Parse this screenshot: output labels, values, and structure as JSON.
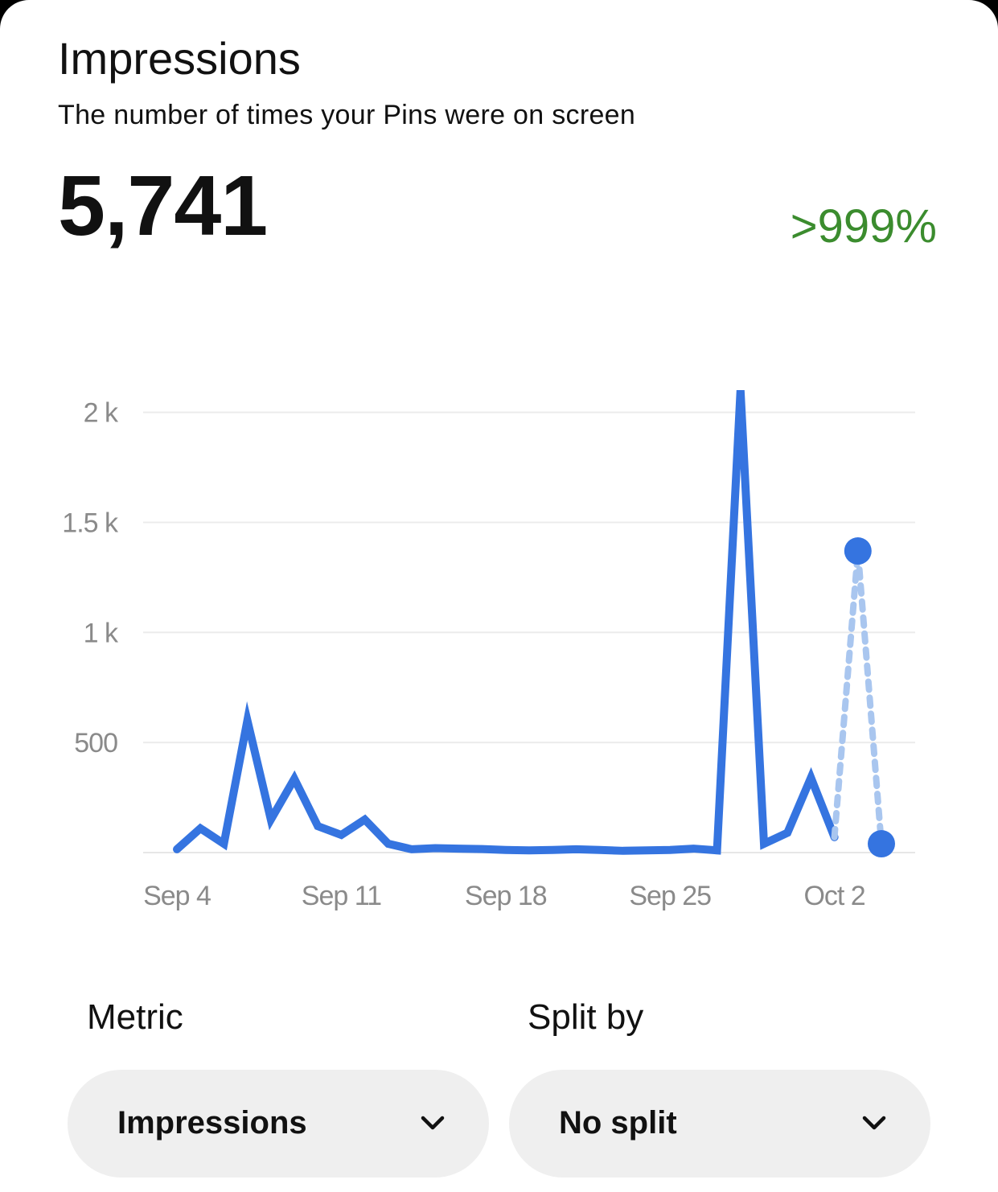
{
  "header": {
    "title": "Impressions",
    "subtitle": "The number of times your Pins were on screen",
    "total": "5,741",
    "change": ">999%",
    "change_color": "#3b8c2e"
  },
  "controls": {
    "metric_label": "Metric",
    "metric_value": "Impressions",
    "split_label": "Split by",
    "split_value": "No split",
    "dropdown_icon": "chevron-down-icon"
  },
  "chart_data": {
    "type": "line",
    "x": [
      "Sep 4",
      "Sep 5",
      "Sep 6",
      "Sep 7",
      "Sep 8",
      "Sep 9",
      "Sep 10",
      "Sep 11",
      "Sep 12",
      "Sep 13",
      "Sep 14",
      "Sep 15",
      "Sep 16",
      "Sep 17",
      "Sep 18",
      "Sep 19",
      "Sep 20",
      "Sep 21",
      "Sep 22",
      "Sep 23",
      "Sep 24",
      "Sep 25",
      "Sep 26",
      "Sep 27",
      "Sep 28",
      "Sep 29",
      "Sep 30",
      "Oct 1",
      "Oct 2",
      "Oct 3",
      "Oct 4"
    ],
    "xticks": [
      "Sep 4",
      "Sep 11",
      "Sep 18",
      "Sep 25",
      "Oct 2"
    ],
    "yticks": [
      {
        "value": 500,
        "label": "500"
      },
      {
        "value": 1000,
        "label": "1 k"
      },
      {
        "value": 1500,
        "label": "1.5 k"
      },
      {
        "value": 2000,
        "label": "2 k"
      }
    ],
    "ylim": [
      0,
      2100
    ],
    "grid": true,
    "series": [
      {
        "style": "solid",
        "color": "#3574e0",
        "values": [
          15,
          110,
          40,
          600,
          150,
          335,
          120,
          80,
          150,
          40,
          15,
          20,
          18,
          16,
          12,
          10,
          12,
          15,
          12,
          8,
          10,
          12,
          18,
          10,
          2100,
          40,
          90,
          340,
          70,
          null,
          null
        ]
      },
      {
        "style": "dotted",
        "color": "#a9c6ef",
        "values": [
          null,
          null,
          null,
          null,
          null,
          null,
          null,
          null,
          null,
          null,
          null,
          null,
          null,
          null,
          null,
          null,
          null,
          null,
          null,
          null,
          null,
          null,
          null,
          null,
          null,
          null,
          null,
          null,
          70,
          1370,
          40
        ]
      }
    ],
    "highlighted_points": [
      {
        "x": "Oct 3",
        "y": 1370
      },
      {
        "x": "Oct 4",
        "y": 40
      }
    ],
    "point_color": "#3574e0"
  }
}
